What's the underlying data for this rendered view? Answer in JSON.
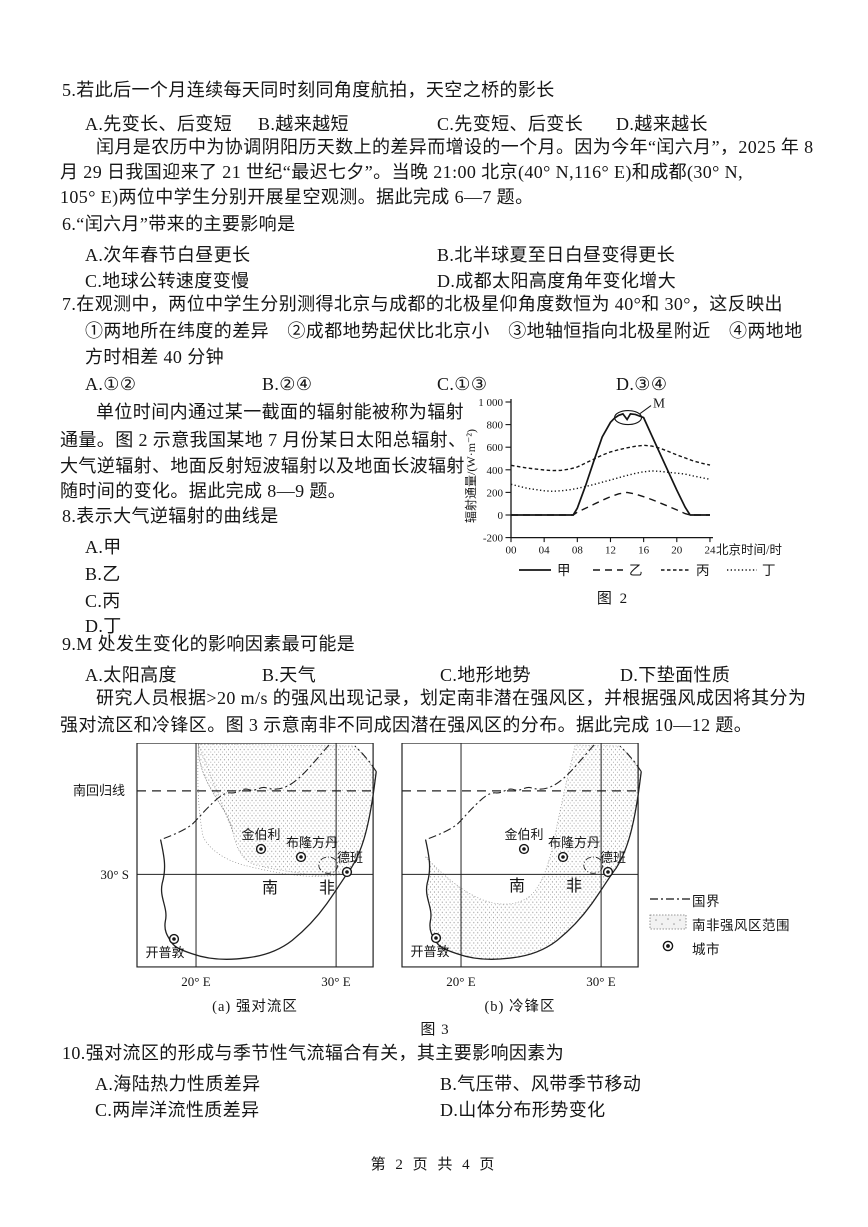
{
  "page": {
    "footer": "第 2 页 共 4 页"
  },
  "q5": {
    "stem": "5.若此后一个月连续每天同时刻同角度航拍，天空之桥的影长",
    "options": [
      "A.先变长、后变短",
      "B.越来越短",
      "C.先变短、后变长",
      "D.越来越长"
    ]
  },
  "para_leap_month": {
    "lines": [
      "闰月是农历中为协调阴阳历天数上的差异而增设的一个月。因为今年“闰六月”，2025 年 8",
      "月 29 日我国迎来了 21 世纪“最迟七夕”。当晚 21:00 北京(40° N,116° E)和成都(30° N,",
      "105° E)两位中学生分别开展星空观测。据此完成 6—7 题。"
    ]
  },
  "q6": {
    "stem": "6.“闰六月”带来的主要影响是",
    "options": [
      "A.次年春节白昼更长",
      "B.北半球夏至日白昼变得更长",
      "C.地球公转速度变慢",
      "D.成都太阳高度角年变化增大"
    ]
  },
  "q7": {
    "stem": "7.在观测中，两位中学生分别测得北京与成都的北极星仰角度数恒为 40°和 30°，这反映出",
    "line1": "①两地所在纬度的差异　②成都地势起伏比北京小　③地轴恒指向北极星附近　④两地地",
    "line2": "方时相差 40 分钟",
    "options": [
      "A.①②",
      "B.②④",
      "C.①③",
      "D.③④"
    ]
  },
  "para_radiation": {
    "lines": [
      "单位时间内通过某一截面的辐射能被称为辐射",
      "通量。图 2 示意我国某地 7 月份某日太阳总辐射、",
      "大气逆辐射、地面反射短波辐射以及地面长波辐射",
      "随时间的变化。据此完成 8—9 题。"
    ]
  },
  "q8": {
    "stem": "8.表示大气逆辐射的曲线是",
    "options": [
      "A.甲",
      "B.乙",
      "C.丙",
      "D.丁"
    ]
  },
  "q9": {
    "stem": "9.M 处发生变化的影响因素最可能是",
    "options": [
      "A.太阳高度",
      "B.天气",
      "C.地形地势",
      "D.下垫面性质"
    ]
  },
  "para_wind": {
    "lines": [
      "研究人员根据>20 m/s 的强风出现记录，划定南非潜在强风区，并根据强风成因将其分为",
      "强对流区和冷锋区。图 3 示意南非不同成因潜在强风区的分布。据此完成 10—12 题。"
    ]
  },
  "q10": {
    "stem": "10.强对流区的形成与季节性气流辐合有关，其主要影响因素为",
    "options": [
      "A.海陆热力性质差异",
      "B.气压带、风带季节移动",
      "C.两岸洋流性质差异",
      "D.山体分布形势变化"
    ]
  },
  "figure2": {
    "caption": "图 2"
  },
  "figure3": {
    "caption": "图 3",
    "sub_a": "(a) 强对流区",
    "sub_b": "(b) 冷锋区",
    "tropic": "南回归线",
    "lat30s": "30° S",
    "lon20": "20° E",
    "lon30": "30° E",
    "country_first": "南",
    "country_second": "非",
    "cities": {
      "kimberley": "金伯利",
      "bloemfontein": "布隆方丹",
      "durban": "德班",
      "cape_town": "开普敦"
    },
    "legend": {
      "border": "国界",
      "zone": "南非强风区范围",
      "city": "城市"
    }
  },
  "chart_data": {
    "type": "line",
    "title": "图 2",
    "xlabel": "北京时间/时",
    "ylabel": "辐射通量/(W·m⁻²)",
    "xlim": [
      0,
      24
    ],
    "ylim": [
      -200,
      1000
    ],
    "xticks": [
      0,
      4,
      8,
      12,
      16,
      20,
      24
    ],
    "xtick_labels": [
      "00",
      "04",
      "08",
      "12",
      "16",
      "20",
      "24"
    ],
    "yticks": [
      -200,
      0,
      200,
      400,
      600,
      800,
      1000
    ],
    "ytick_labels": [
      "-200",
      "0",
      "200",
      "400",
      "600",
      "800",
      "1 000"
    ],
    "grid": false,
    "legend_position": "bottom",
    "annotation": {
      "label": "M",
      "x": 14,
      "y": 880
    },
    "series": [
      {
        "name": "甲",
        "style": "solid",
        "points": [
          [
            0,
            0
          ],
          [
            7.5,
            0
          ],
          [
            8,
            60
          ],
          [
            9,
            260
          ],
          [
            10,
            480
          ],
          [
            11,
            690
          ],
          [
            12,
            820
          ],
          [
            12.5,
            858
          ],
          [
            13,
            882
          ],
          [
            13.5,
            895
          ],
          [
            14,
            845
          ],
          [
            14.4,
            895
          ],
          [
            15,
            890
          ],
          [
            16,
            862
          ],
          [
            17,
            700
          ],
          [
            18,
            540
          ],
          [
            19,
            380
          ],
          [
            20,
            220
          ],
          [
            21,
            70
          ],
          [
            21.6,
            0
          ],
          [
            24,
            0
          ]
        ]
      },
      {
        "name": "乙",
        "style": "long-dash",
        "points": [
          [
            0,
            0
          ],
          [
            7.5,
            0
          ],
          [
            8,
            25
          ],
          [
            9,
            60
          ],
          [
            10,
            95
          ],
          [
            11,
            130
          ],
          [
            12,
            162
          ],
          [
            13,
            188
          ],
          [
            14,
            200
          ],
          [
            15,
            186
          ],
          [
            16,
            162
          ],
          [
            17,
            136
          ],
          [
            18,
            106
          ],
          [
            19,
            76
          ],
          [
            20,
            45
          ],
          [
            21,
            12
          ],
          [
            21.6,
            0
          ],
          [
            24,
            0
          ]
        ]
      },
      {
        "name": "丙",
        "style": "dash",
        "points": [
          [
            0,
            440
          ],
          [
            2,
            415
          ],
          [
            4,
            398
          ],
          [
            5,
            393
          ],
          [
            6,
            395
          ],
          [
            7,
            405
          ],
          [
            8,
            425
          ],
          [
            9,
            460
          ],
          [
            10,
            495
          ],
          [
            11,
            530
          ],
          [
            12,
            558
          ],
          [
            13,
            578
          ],
          [
            14,
            595
          ],
          [
            15,
            608
          ],
          [
            16,
            617
          ],
          [
            17,
            610
          ],
          [
            18,
            590
          ],
          [
            19,
            562
          ],
          [
            20,
            532
          ],
          [
            21,
            505
          ],
          [
            22,
            478
          ],
          [
            23,
            458
          ],
          [
            24,
            442
          ]
        ]
      },
      {
        "name": "丁",
        "style": "dot",
        "points": [
          [
            0,
            272
          ],
          [
            2,
            235
          ],
          [
            4,
            214
          ],
          [
            5,
            210
          ],
          [
            6,
            214
          ],
          [
            7,
            222
          ],
          [
            8,
            235
          ],
          [
            9,
            252
          ],
          [
            10,
            270
          ],
          [
            11,
            290
          ],
          [
            12,
            310
          ],
          [
            13,
            330
          ],
          [
            14,
            350
          ],
          [
            15,
            368
          ],
          [
            16,
            382
          ],
          [
            17,
            390
          ],
          [
            18,
            386
          ],
          [
            19,
            378
          ],
          [
            20,
            370
          ],
          [
            21,
            362
          ],
          [
            22,
            345
          ],
          [
            23,
            330
          ],
          [
            24,
            316
          ]
        ]
      }
    ]
  }
}
